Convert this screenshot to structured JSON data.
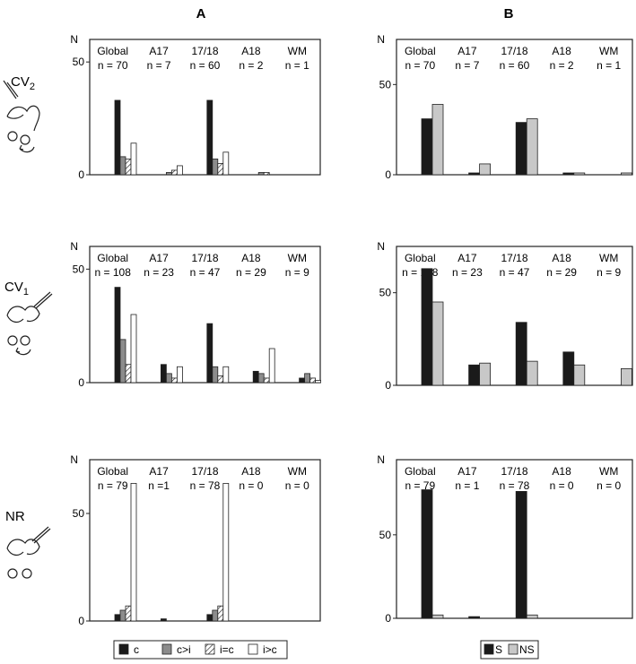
{
  "figure": {
    "column_headings": [
      "A",
      "B"
    ],
    "row_labels": [
      {
        "main": "CV",
        "sub": "2"
      },
      {
        "main": "CV",
        "sub": "1"
      },
      {
        "main": "NR",
        "sub": ""
      }
    ],
    "y_axis_symbol": "N",
    "legend_A": [
      {
        "label": "c",
        "fill": "black"
      },
      {
        "label": "c>i",
        "fill": "gray"
      },
      {
        "label": "i=c",
        "fill": "hatch"
      },
      {
        "label": "i>c",
        "fill": "white"
      }
    ],
    "legend_B": [
      {
        "label": "S",
        "fill": "black"
      },
      {
        "label": "NS",
        "fill": "lightgray"
      }
    ],
    "colors": {
      "black": "#1a1a1a",
      "gray": "#8c8c8c",
      "lightgray": "#c8c8c8",
      "white": "#ffffff",
      "stroke": "#222222"
    }
  },
  "chart_data": [
    {
      "type": "bar",
      "panel": "A",
      "row": "CV2",
      "categories": [
        {
          "name": "Global",
          "n": "n = 70"
        },
        {
          "name": "A17",
          "n": "n = 7"
        },
        {
          "name": "17/18",
          "n": "n = 60"
        },
        {
          "name": "A18",
          "n": "n = 2"
        },
        {
          "name": "WM",
          "n": "n = 1"
        }
      ],
      "ylabel": "N",
      "ylim": [
        0,
        60
      ],
      "yticks": [
        0,
        50
      ],
      "series": [
        {
          "name": "c",
          "values": [
            33,
            0,
            33,
            0,
            0
          ]
        },
        {
          "name": "c>i",
          "values": [
            8,
            1,
            7,
            1,
            0
          ]
        },
        {
          "name": "i=c",
          "values": [
            7,
            2,
            5,
            1,
            0
          ]
        },
        {
          "name": "i>c",
          "values": [
            14,
            4,
            10,
            0,
            0
          ]
        }
      ]
    },
    {
      "type": "bar",
      "panel": "B",
      "row": "CV2",
      "categories": [
        {
          "name": "Global",
          "n": "n = 70"
        },
        {
          "name": "A17",
          "n": "n = 7"
        },
        {
          "name": "17/18",
          "n": "n = 60"
        },
        {
          "name": "A18",
          "n": "n = 2"
        },
        {
          "name": "WM",
          "n": "n = 1"
        }
      ],
      "ylabel": "N",
      "ylim": [
        0,
        75
      ],
      "yticks": [
        0,
        50
      ],
      "series": [
        {
          "name": "S",
          "values": [
            31,
            1,
            29,
            1,
            0
          ]
        },
        {
          "name": "NS",
          "values": [
            39,
            6,
            31,
            1,
            1
          ]
        }
      ]
    },
    {
      "type": "bar",
      "panel": "A",
      "row": "CV1",
      "categories": [
        {
          "name": "Global",
          "n": "n = 108"
        },
        {
          "name": "A17",
          "n": "n = 23"
        },
        {
          "name": "17/18",
          "n": "n = 47"
        },
        {
          "name": "A18",
          "n": "n = 29"
        },
        {
          "name": "WM",
          "n": "n = 9"
        }
      ],
      "ylabel": "N",
      "ylim": [
        0,
        60
      ],
      "yticks": [
        0,
        50
      ],
      "series": [
        {
          "name": "c",
          "values": [
            42,
            8,
            26,
            5,
            2
          ]
        },
        {
          "name": "c>i",
          "values": [
            19,
            4,
            7,
            4,
            4
          ]
        },
        {
          "name": "i=c",
          "values": [
            8,
            2,
            3,
            2,
            2
          ]
        },
        {
          "name": "i>c",
          "values": [
            30,
            7,
            7,
            15,
            1
          ]
        }
      ]
    },
    {
      "type": "bar",
      "panel": "B",
      "row": "CV1",
      "categories": [
        {
          "name": "Global",
          "n": "n = 108"
        },
        {
          "name": "A17",
          "n": "n = 23"
        },
        {
          "name": "17/18",
          "n": "n = 47"
        },
        {
          "name": "A18",
          "n": "n = 29"
        },
        {
          "name": "WM",
          "n": "n = 9"
        }
      ],
      "ylabel": "N",
      "ylim": [
        0,
        75
      ],
      "yticks": [
        0,
        50
      ],
      "series": [
        {
          "name": "S",
          "values": [
            63,
            11,
            34,
            18,
            0
          ]
        },
        {
          "name": "NS",
          "values": [
            45,
            12,
            13,
            11,
            9
          ]
        }
      ]
    },
    {
      "type": "bar",
      "panel": "A",
      "row": "NR",
      "categories": [
        {
          "name": "Global",
          "n": "n = 79"
        },
        {
          "name": "A17",
          "n": "n =1"
        },
        {
          "name": "17/18",
          "n": "n = 78"
        },
        {
          "name": "A18",
          "n": "n = 0"
        },
        {
          "name": "WM",
          "n": "n = 0"
        }
      ],
      "ylabel": "N",
      "ylim": [
        0,
        75
      ],
      "yticks": [
        0,
        50
      ],
      "series": [
        {
          "name": "c",
          "values": [
            3,
            1,
            3,
            0,
            0
          ]
        },
        {
          "name": "c>i",
          "values": [
            5,
            0,
            5,
            0,
            0
          ]
        },
        {
          "name": "i=c",
          "values": [
            7,
            0,
            7,
            0,
            0
          ]
        },
        {
          "name": "i>c",
          "values": [
            64,
            0,
            64,
            0,
            0
          ]
        }
      ]
    },
    {
      "type": "bar",
      "panel": "B",
      "row": "NR",
      "categories": [
        {
          "name": "Global",
          "n": "n = 79"
        },
        {
          "name": "A17",
          "n": "n = 1"
        },
        {
          "name": "17/18",
          "n": "n = 78"
        },
        {
          "name": "A18",
          "n": "n = 0"
        },
        {
          "name": "WM",
          "n": "n = 0"
        }
      ],
      "ylabel": "N",
      "ylim": [
        0,
        95
      ],
      "yticks": [
        0,
        50
      ],
      "series": [
        {
          "name": "S",
          "values": [
            77,
            1,
            76,
            0,
            0
          ]
        },
        {
          "name": "NS",
          "values": [
            2,
            0,
            2,
            0,
            0
          ]
        }
      ]
    }
  ]
}
